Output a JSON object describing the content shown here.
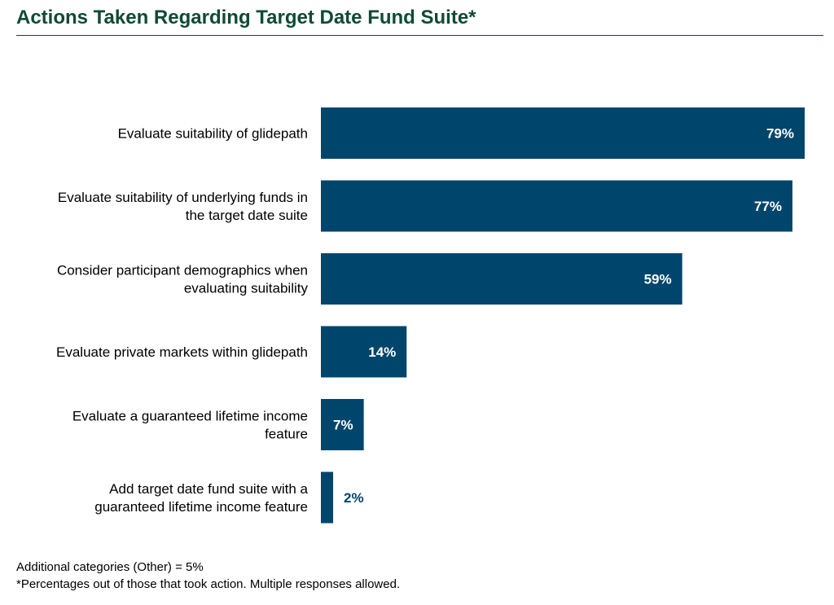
{
  "title": "Actions Taken Regarding Target Date Fund Suite*",
  "colors": {
    "bar": "#00456b",
    "title": "#0f4a34",
    "label_inside": "#ffffff",
    "label_outside": "#00456b"
  },
  "chart_data": {
    "type": "bar",
    "orientation": "horizontal",
    "categories": [
      [
        "Evaluate suitability of glidepath"
      ],
      [
        "Evaluate suitability of underlying funds in",
        "the target date suite"
      ],
      [
        "Consider participant demographics when",
        "evaluating suitability"
      ],
      [
        "Evaluate private markets within glidepath"
      ],
      [
        "Evaluate a guaranteed lifetime income",
        "feature"
      ],
      [
        "Add target date fund suite with a",
        "guaranteed lifetime income feature"
      ]
    ],
    "values": [
      79,
      77,
      59,
      14,
      7,
      2
    ],
    "data_labels": [
      "79%",
      "77%",
      "59%",
      "14%",
      "7%",
      "2%"
    ],
    "xlim": [
      0,
      79
    ],
    "grid": false,
    "legend": "none"
  },
  "footnotes": {
    "other": "Additional categories (Other) = 5%",
    "note": "*Percentages out of those that took action. Multiple responses allowed."
  }
}
